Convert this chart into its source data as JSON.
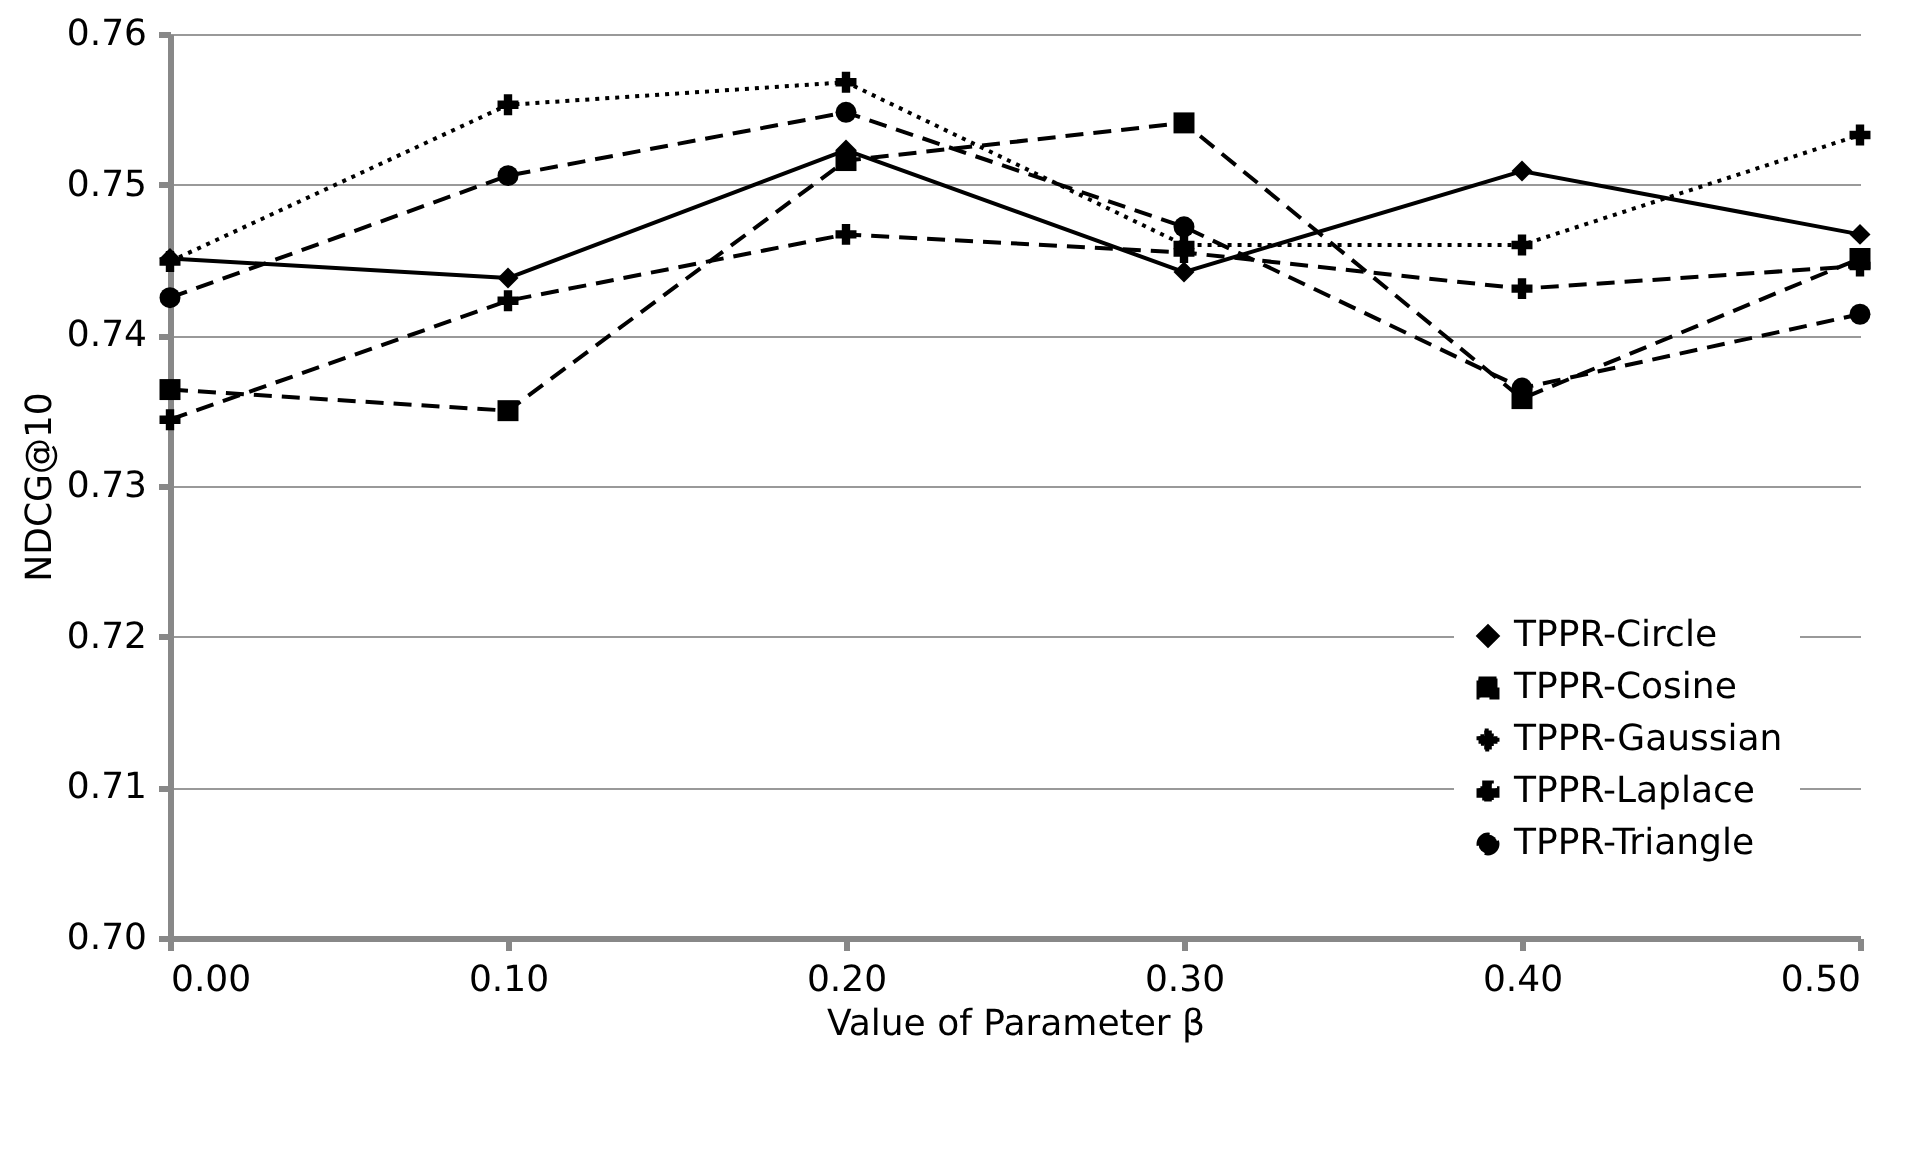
{
  "chart_data": {
    "type": "line",
    "xlabel": "Value of Parameter β",
    "ylabel": "NDCG@10",
    "x": [
      0,
      0.1,
      0.2,
      0.3,
      0.4,
      0.5
    ],
    "xlim": [
      0,
      0.5
    ],
    "xticks": [
      {
        "value": 0,
        "label": "0.00"
      },
      {
        "value": 0.1,
        "label": "0.10"
      },
      {
        "value": 0.2,
        "label": "0.20"
      },
      {
        "value": 0.3,
        "label": "0.30"
      },
      {
        "value": 0.4,
        "label": "0.40"
      },
      {
        "value": 0.5,
        "label": "0.50"
      }
    ],
    "ylim": [
      0.7,
      0.76
    ],
    "yticks": [
      {
        "value": 0.7,
        "label": "0.70"
      },
      {
        "value": 0.71,
        "label": "0.71"
      },
      {
        "value": 0.72,
        "label": "0.72"
      },
      {
        "value": 0.73,
        "label": "0.73"
      },
      {
        "value": 0.74,
        "label": "0.74"
      },
      {
        "value": 0.75,
        "label": "0.75"
      },
      {
        "value": 0.76,
        "label": "0.76"
      }
    ],
    "grid": "y",
    "legend": "bottom right",
    "series": [
      {
        "name": "TPPR-Circle",
        "color": "#000000",
        "marker": "diamond",
        "line_style": "solid",
        "values": [
          0.7451,
          0.7438,
          0.7523,
          0.7442,
          0.7509,
          0.7467
        ]
      },
      {
        "name": "TPPR-Cosine",
        "color": "#000000",
        "marker": "square",
        "line_style": "dashed",
        "values": [
          0.7364,
          0.735,
          0.7516,
          0.7541,
          0.7358,
          0.7451
        ]
      },
      {
        "name": "TPPR-Gaussian",
        "color": "#000000",
        "marker": "cross",
        "line_style": "dotted",
        "values": [
          0.7449,
          0.7553,
          0.7568,
          0.746,
          0.746,
          0.7533
        ]
      },
      {
        "name": "TPPR-Laplace",
        "color": "#000000",
        "marker": "cross",
        "line_style": "dashed",
        "values": [
          0.7344,
          0.7423,
          0.7467,
          0.7455,
          0.7431,
          0.7446
        ]
      },
      {
        "name": "TPPR-Triangle",
        "color": "#000000",
        "marker": "circle",
        "line_style": "dashed",
        "values": [
          0.7425,
          0.7506,
          0.7548,
          0.7472,
          0.7365,
          0.7414
        ]
      }
    ]
  }
}
